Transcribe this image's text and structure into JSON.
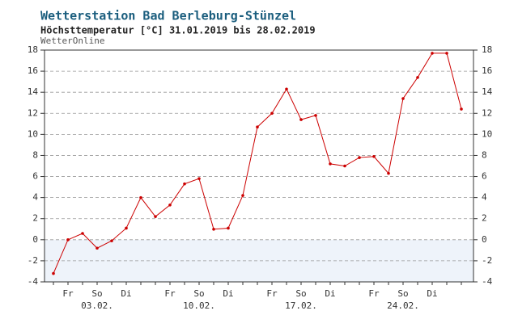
{
  "chart_data": {
    "type": "line",
    "title": "Wetterstation Bad Berleburg-Stünzel",
    "subtitle": "Höchsttemperatur [°C] 31.01.2019 bis 28.02.2019",
    "source": "WetterOnline",
    "categories": [
      null,
      "Fr",
      null,
      "So",
      null,
      "Di",
      null,
      null,
      "Fr",
      null,
      "So",
      null,
      "Di",
      null,
      null,
      "Fr",
      null,
      "So",
      null,
      "Di",
      null,
      null,
      "Fr",
      null,
      "So",
      null,
      "Di",
      null,
      null
    ],
    "category_dates": [
      null,
      null,
      null,
      "03.02.",
      null,
      null,
      null,
      null,
      null,
      null,
      "10.02.",
      null,
      null,
      null,
      null,
      null,
      null,
      "17.02.",
      null,
      null,
      null,
      null,
      null,
      null,
      "24.02.",
      null,
      null,
      null,
      null
    ],
    "series": [
      {
        "name": "Höchsttemperatur",
        "color": "#cc0000",
        "values": [
          -3.2,
          0.0,
          0.6,
          -0.8,
          -0.1,
          1.1,
          4.0,
          2.2,
          3.3,
          5.3,
          5.8,
          1.0,
          1.1,
          4.2,
          10.7,
          12.0,
          14.3,
          11.4,
          11.8,
          7.2,
          7.0,
          7.8,
          7.9,
          6.3,
          13.4,
          15.4,
          17.7,
          17.7,
          12.4
        ]
      }
    ],
    "ylim": [
      -4,
      18
    ],
    "yticks": [
      -4,
      -2,
      0,
      2,
      4,
      6,
      8,
      10,
      12,
      14,
      16,
      18
    ],
    "grid": true,
    "below_zero_fill": "#eef3fa"
  }
}
